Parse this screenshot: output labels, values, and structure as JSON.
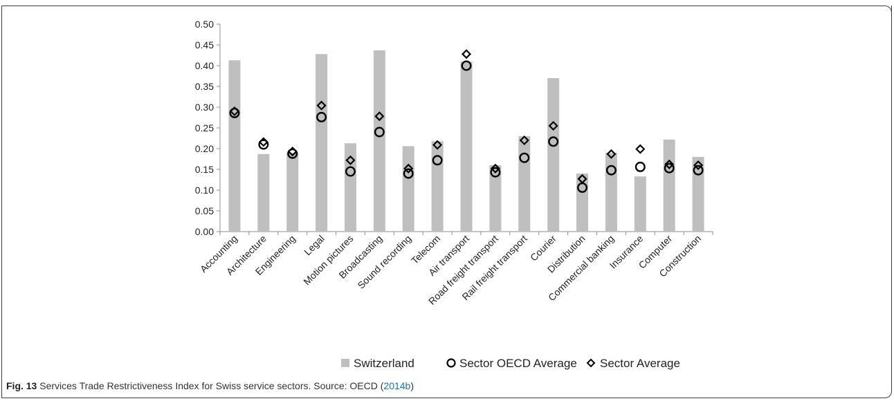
{
  "chart_data": {
    "type": "bar",
    "categories": [
      "Accounting",
      "Architecture",
      "Engineering",
      "Legal",
      "Motion pictures",
      "Broadcasting",
      "Sound recording",
      "Telecom",
      "Air transport",
      "Road freight transport",
      "Rail freight transport",
      "Courier",
      "Distribution",
      "Commercial banking",
      "Insurance",
      "Computer",
      "Construction"
    ],
    "series": [
      {
        "name": "Switzerland",
        "kind": "bar",
        "color": "#bfbfbf",
        "values": [
          0.413,
          0.187,
          0.19,
          0.428,
          0.213,
          0.437,
          0.206,
          0.218,
          0.41,
          0.16,
          0.23,
          0.37,
          0.14,
          0.19,
          0.133,
          0.222,
          0.18
        ]
      },
      {
        "name": "Sector OECD Average",
        "kind": "circle",
        "color": "#000000",
        "values": [
          0.286,
          0.21,
          0.188,
          0.276,
          0.145,
          0.24,
          0.14,
          0.172,
          0.4,
          0.143,
          0.178,
          0.217,
          0.106,
          0.148,
          0.156,
          0.153,
          0.148
        ]
      },
      {
        "name": "Sector Average",
        "kind": "diamond",
        "color": "#000000",
        "values": [
          0.29,
          0.216,
          0.193,
          0.304,
          0.172,
          0.278,
          0.152,
          0.209,
          0.428,
          0.152,
          0.22,
          0.255,
          0.127,
          0.187,
          0.199,
          0.162,
          0.16
        ]
      }
    ],
    "yticks": [
      "0.00",
      "0.05",
      "0.10",
      "0.15",
      "0.20",
      "0.25",
      "0.30",
      "0.35",
      "0.40",
      "0.45",
      "0.50"
    ],
    "ylim": [
      0,
      0.5
    ],
    "grid": false,
    "legend_position": "bottom"
  },
  "caption": {
    "label": "Fig. 13",
    "text": " Services Trade Restrictiveness Index for Swiss service sectors. Source: OECD (",
    "link": "2014b",
    "end": ")"
  }
}
